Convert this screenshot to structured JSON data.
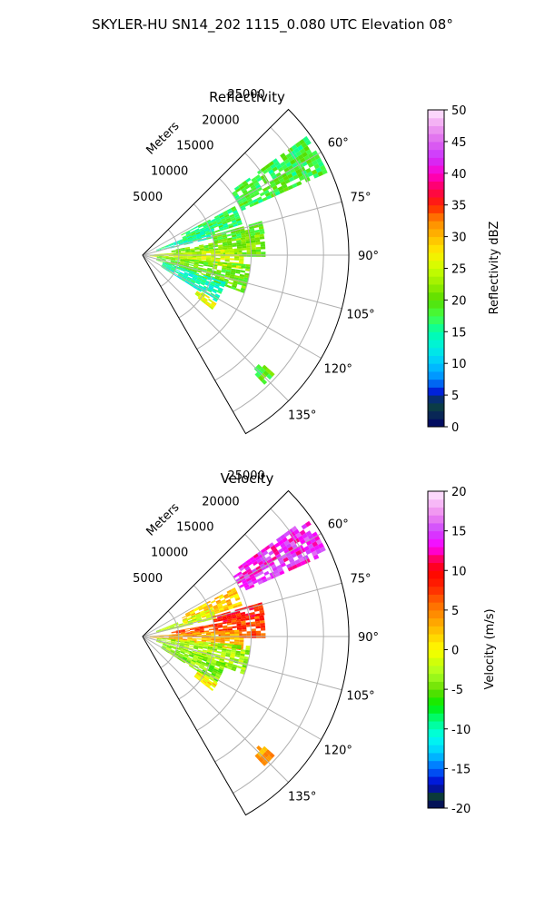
{
  "figure": {
    "title": "SKYLER-HU  SN14_202  1115_0.080 UTC Elevation 08°"
  },
  "chart_data": [
    {
      "type": "heatmap",
      "subtype": "radar-sector-ppi",
      "title": "Reflectivity",
      "range_axis_label": "Meters",
      "range_ticks": [
        "5000",
        "10000",
        "15000",
        "20000",
        "25000"
      ],
      "range_tick_values": [
        5000,
        10000,
        15000,
        20000,
        25000
      ],
      "range_max_m": 28500,
      "azimuth_range_deg": [
        45,
        150
      ],
      "azimuth_ticks": [
        "60°",
        "75°",
        "90°",
        "105°",
        "120°",
        "135°"
      ],
      "azimuth_tick_values": [
        60,
        75,
        90,
        105,
        120,
        135
      ],
      "grid": true,
      "colorbar": {
        "label": "Reflectivity dBZ",
        "ticks": [
          "0",
          "5",
          "10",
          "15",
          "20",
          "25",
          "30",
          "35",
          "40",
          "45",
          "50"
        ],
        "range": [
          0,
          50
        ],
        "stops": [
          [
            0,
            "#000066"
          ],
          [
            2,
            "#0a2a55"
          ],
          [
            4,
            "#0b4a3a"
          ],
          [
            5,
            "#0000cc"
          ],
          [
            7.5,
            "#0088ff"
          ],
          [
            10,
            "#00c8ff"
          ],
          [
            12.5,
            "#00f0e0"
          ],
          [
            15,
            "#00ffaa"
          ],
          [
            17.5,
            "#44ff44"
          ],
          [
            20,
            "#55dd00"
          ],
          [
            22.5,
            "#99ee00"
          ],
          [
            25,
            "#ccff00"
          ],
          [
            27.5,
            "#ffee00"
          ],
          [
            30,
            "#ffbb00"
          ],
          [
            32.5,
            "#ff8800"
          ],
          [
            35,
            "#ff2200"
          ],
          [
            37.5,
            "#ff0055"
          ],
          [
            40,
            "#ff00cc"
          ],
          [
            42.5,
            "#cc33ff"
          ],
          [
            45,
            "#dd66ee"
          ],
          [
            47.5,
            "#f0a0f0"
          ],
          [
            50,
            "#ffe8ff"
          ]
        ]
      },
      "echo_regions": [
        {
          "az": [
            54,
            66
          ],
          "r": [
            15000,
            28000
          ],
          "value": 18
        },
        {
          "az": [
            62,
            72
          ],
          "r": [
            6000,
            14000
          ],
          "value": 17
        },
        {
          "az": [
            68,
            76
          ],
          "r": [
            2000,
            10000
          ],
          "value": 15
        },
        {
          "az": [
            74,
            80
          ],
          "r": [
            10000,
            17000
          ],
          "value": 19
        },
        {
          "az": [
            80,
            90
          ],
          "r": [
            4000,
            17000
          ],
          "value": 21
        },
        {
          "az": [
            86,
            98
          ],
          "r": [
            1000,
            14000
          ],
          "value": 25
        },
        {
          "az": [
            95,
            110
          ],
          "r": [
            2000,
            15000
          ],
          "value": 20
        },
        {
          "az": [
            108,
            122
          ],
          "r": [
            3000,
            12000
          ],
          "value": 14
        },
        {
          "az": [
            122,
            128
          ],
          "r": [
            9000,
            12000
          ],
          "value": 26
        },
        {
          "az": [
            132,
            136
          ],
          "r": [
            22000,
            24000
          ],
          "value": 19
        }
      ]
    },
    {
      "type": "heatmap",
      "subtype": "radar-sector-ppi",
      "title": "Velocity",
      "range_axis_label": "Meters",
      "range_ticks": [
        "5000",
        "10000",
        "15000",
        "20000",
        "25000"
      ],
      "range_tick_values": [
        5000,
        10000,
        15000,
        20000,
        25000
      ],
      "range_max_m": 28500,
      "azimuth_range_deg": [
        45,
        150
      ],
      "azimuth_ticks": [
        "60°",
        "75°",
        "90°",
        "105°",
        "120°",
        "135°"
      ],
      "azimuth_tick_values": [
        60,
        75,
        90,
        105,
        120,
        135
      ],
      "grid": true,
      "colorbar": {
        "label": "Velocity (m/s)",
        "ticks": [
          "-20",
          "-15",
          "-10",
          "-5",
          "0",
          "5",
          "10",
          "15",
          "20"
        ],
        "range": [
          -20,
          20
        ],
        "stops": [
          [
            -20,
            "#000066"
          ],
          [
            -18.5,
            "#0b3a3a"
          ],
          [
            -17,
            "#0000cc"
          ],
          [
            -15,
            "#0066ff"
          ],
          [
            -13,
            "#00ccff"
          ],
          [
            -11,
            "#00ffee"
          ],
          [
            -9,
            "#00ff88"
          ],
          [
            -7,
            "#00ee00"
          ],
          [
            -5,
            "#66dd00"
          ],
          [
            -3,
            "#aaff22"
          ],
          [
            -1,
            "#ddff00"
          ],
          [
            0,
            "#ffff00"
          ],
          [
            2,
            "#ffcc00"
          ],
          [
            4,
            "#ff9900"
          ],
          [
            6,
            "#ff6600"
          ],
          [
            8,
            "#ff2200"
          ],
          [
            10,
            "#ff0000"
          ],
          [
            11.5,
            "#ff0066"
          ],
          [
            13,
            "#ff00ff"
          ],
          [
            15,
            "#cc44ff"
          ],
          [
            17,
            "#ee88ee"
          ],
          [
            20,
            "#ffe8ff"
          ]
        ]
      },
      "echo_regions": [
        {
          "az": [
            54,
            66
          ],
          "r": [
            15000,
            28000
          ],
          "value": 14
        },
        {
          "az": [
            62,
            72
          ],
          "r": [
            6000,
            14000
          ],
          "value": 2
        },
        {
          "az": [
            68,
            76
          ],
          "r": [
            2000,
            10000
          ],
          "value": -2
        },
        {
          "az": [
            74,
            80
          ],
          "r": [
            10000,
            17000
          ],
          "value": 9
        },
        {
          "az": [
            80,
            90
          ],
          "r": [
            4000,
            17000
          ],
          "value": 7
        },
        {
          "az": [
            86,
            98
          ],
          "r": [
            1000,
            14000
          ],
          "value": 3
        },
        {
          "az": [
            95,
            110
          ],
          "r": [
            2000,
            15000
          ],
          "value": -3
        },
        {
          "az": [
            108,
            122
          ],
          "r": [
            3000,
            12000
          ],
          "value": -4
        },
        {
          "az": [
            122,
            128
          ],
          "r": [
            9000,
            12000
          ],
          "value": 1
        },
        {
          "az": [
            132,
            136
          ],
          "r": [
            22000,
            24000
          ],
          "value": 3
        }
      ]
    }
  ]
}
